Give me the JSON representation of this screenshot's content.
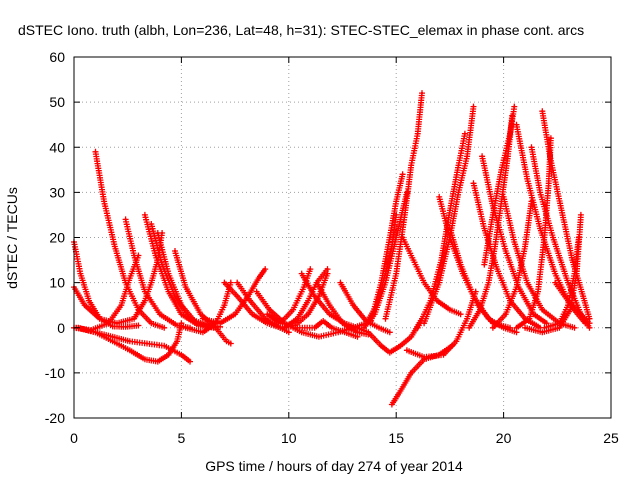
{
  "chart_data": {
    "type": "scatter",
    "title": "dSTEC Iono. truth (albh, Lon=236, Lat=48, h=31): STEC-STEC_elemax in phase cont. arcs",
    "xlabel": "GPS time / hours of day 274 of year 2014",
    "ylabel": "dSTEC  / TECUs",
    "xlim": [
      0,
      25
    ],
    "ylim": [
      -20,
      60
    ],
    "xticks": [
      0,
      5,
      10,
      15,
      20,
      25
    ],
    "yticks": [
      -20,
      -10,
      0,
      10,
      20,
      30,
      40,
      50,
      60
    ],
    "xtick_labels": [
      "0",
      "5",
      "10",
      "15",
      "20",
      "25"
    ],
    "ytick_labels": [
      "-20",
      "-10",
      "0",
      "10",
      "20",
      "30",
      "40",
      "50",
      "60"
    ],
    "grid": true,
    "marker": "+",
    "color": "#ff0000",
    "series": [
      {
        "points": [
          [
            0.0,
            19
          ],
          [
            0.3,
            12
          ],
          [
            0.7,
            6
          ],
          [
            1.2,
            2
          ],
          [
            1.8,
            0.3
          ],
          [
            2.4,
            0.2
          ],
          [
            3.0,
            0.5
          ]
        ]
      },
      {
        "points": [
          [
            0.0,
            9
          ],
          [
            0.5,
            5
          ],
          [
            1.2,
            2
          ],
          [
            2.0,
            1
          ],
          [
            2.8,
            2
          ],
          [
            3.3,
            6
          ],
          [
            3.6,
            10
          ],
          [
            3.9,
            15
          ],
          [
            4.1,
            21
          ]
        ]
      },
      {
        "points": [
          [
            0.0,
            0
          ],
          [
            0.8,
            -0.5
          ],
          [
            1.6,
            1
          ],
          [
            2.2,
            5
          ],
          [
            2.6,
            11
          ],
          [
            3.0,
            16
          ]
        ]
      },
      {
        "points": [
          [
            0.1,
            0
          ],
          [
            1.0,
            -1
          ],
          [
            1.8,
            -3
          ],
          [
            2.6,
            -5
          ],
          [
            3.3,
            -7
          ],
          [
            3.9,
            -7.5
          ],
          [
            4.4,
            -6
          ],
          [
            4.8,
            -3
          ],
          [
            5.0,
            1
          ]
        ]
      },
      {
        "points": [
          [
            0.2,
            0
          ],
          [
            1.0,
            -1
          ],
          [
            1.8,
            -2
          ],
          [
            2.6,
            -3
          ],
          [
            3.4,
            -3.5
          ],
          [
            4.2,
            -4
          ],
          [
            5.0,
            -6
          ],
          [
            5.4,
            -7.5
          ]
        ]
      },
      {
        "points": [
          [
            1.0,
            39
          ],
          [
            1.4,
            28
          ],
          [
            1.9,
            18
          ],
          [
            2.4,
            10
          ],
          [
            3.0,
            4
          ],
          [
            3.6,
            1
          ],
          [
            4.2,
            0
          ]
        ]
      },
      {
        "points": [
          [
            2.4,
            24
          ],
          [
            2.8,
            16
          ],
          [
            3.3,
            8
          ],
          [
            4.0,
            3
          ],
          [
            4.8,
            0.5
          ],
          [
            5.4,
            0
          ]
        ]
      },
      {
        "points": [
          [
            3.3,
            25
          ],
          [
            3.8,
            16
          ],
          [
            4.4,
            8
          ],
          [
            5.0,
            3
          ],
          [
            5.8,
            0.5
          ],
          [
            6.5,
            0
          ]
        ]
      },
      {
        "points": [
          [
            3.6,
            23
          ],
          [
            4.1,
            14
          ],
          [
            4.7,
            7
          ],
          [
            5.4,
            2
          ],
          [
            6.2,
            0.5
          ],
          [
            6.8,
            0.2
          ]
        ]
      },
      {
        "points": [
          [
            3.9,
            21
          ],
          [
            4.4,
            12
          ],
          [
            5.0,
            5
          ],
          [
            5.7,
            1
          ],
          [
            6.6,
            0
          ]
        ]
      },
      {
        "points": [
          [
            4.7,
            17
          ],
          [
            5.2,
            9
          ],
          [
            5.9,
            3
          ],
          [
            6.6,
            0
          ],
          [
            7.1,
            -3
          ],
          [
            7.3,
            -3.5
          ]
        ]
      },
      {
        "points": [
          [
            5.2,
            0
          ],
          [
            6.0,
            -1
          ],
          [
            6.6,
            1
          ],
          [
            7.0,
            5
          ],
          [
            7.3,
            10
          ]
        ]
      },
      {
        "points": [
          [
            6.0,
            2
          ],
          [
            6.8,
            1
          ],
          [
            7.5,
            3
          ],
          [
            8.1,
            7
          ],
          [
            8.6,
            11
          ],
          [
            8.9,
            13
          ]
        ]
      },
      {
        "points": [
          [
            7.0,
            10
          ],
          [
            7.6,
            7
          ],
          [
            8.3,
            3
          ],
          [
            9.0,
            1
          ],
          [
            9.6,
            0
          ],
          [
            10.0,
            -1
          ]
        ]
      },
      {
        "points": [
          [
            7.6,
            10
          ],
          [
            8.2,
            6
          ],
          [
            8.9,
            2
          ],
          [
            9.6,
            0
          ],
          [
            10.3,
            0.5
          ],
          [
            10.9,
            3
          ],
          [
            11.4,
            7
          ],
          [
            11.8,
            12
          ]
        ]
      },
      {
        "points": [
          [
            8.5,
            8
          ],
          [
            9.1,
            4
          ],
          [
            9.8,
            1
          ],
          [
            10.6,
            -1
          ],
          [
            11.4,
            -2
          ],
          [
            12.3,
            -1
          ],
          [
            13.0,
            0
          ]
        ]
      },
      {
        "points": [
          [
            9.0,
            3
          ],
          [
            9.6,
            1
          ],
          [
            10.2,
            4
          ],
          [
            10.7,
            9
          ],
          [
            11.0,
            13
          ]
        ]
      },
      {
        "points": [
          [
            9.8,
            0
          ],
          [
            10.4,
            2
          ],
          [
            10.9,
            6
          ],
          [
            11.3,
            10
          ],
          [
            11.8,
            13
          ]
        ]
      },
      {
        "points": [
          [
            10.4,
            0
          ],
          [
            11.2,
            0
          ],
          [
            11.6,
            1.5
          ],
          [
            12.0,
            0
          ],
          [
            12.6,
            -1
          ],
          [
            13.2,
            -2
          ]
        ]
      },
      {
        "points": [
          [
            10.6,
            12
          ],
          [
            11.2,
            7
          ],
          [
            11.9,
            3
          ],
          [
            12.6,
            1
          ],
          [
            13.2,
            0
          ]
        ]
      },
      {
        "points": [
          [
            11.3,
            10
          ],
          [
            11.9,
            5
          ],
          [
            12.5,
            1
          ],
          [
            13.2,
            -1
          ],
          [
            13.7,
            -1.5
          ]
        ]
      },
      {
        "points": [
          [
            12.4,
            10
          ],
          [
            13.0,
            5
          ],
          [
            13.6,
            1.5
          ],
          [
            14.2,
            0
          ],
          [
            14.7,
            -1
          ]
        ]
      },
      {
        "points": [
          [
            13.0,
            0
          ],
          [
            13.6,
            1
          ],
          [
            14.1,
            5
          ],
          [
            14.5,
            12
          ],
          [
            14.8,
            18
          ],
          [
            15.0,
            25
          ]
        ]
      },
      {
        "points": [
          [
            13.2,
            0
          ],
          [
            13.7,
            -1
          ],
          [
            14.3,
            -4
          ],
          [
            14.7,
            -5.5
          ],
          [
            15.2,
            -4
          ],
          [
            15.7,
            -2
          ],
          [
            16.2,
            2
          ]
        ]
      },
      {
        "points": [
          [
            13.5,
            0
          ],
          [
            14.0,
            3
          ],
          [
            14.5,
            10
          ],
          [
            14.9,
            18
          ],
          [
            15.2,
            24
          ],
          [
            15.5,
            30
          ]
        ]
      },
      {
        "points": [
          [
            13.8,
            1
          ],
          [
            14.3,
            10
          ],
          [
            14.7,
            20
          ],
          [
            15.0,
            28
          ],
          [
            15.3,
            34
          ]
        ]
      },
      {
        "points": [
          [
            14.5,
            2
          ],
          [
            15.0,
            12
          ],
          [
            15.4,
            25
          ],
          [
            15.7,
            36
          ],
          [
            16.0,
            43
          ],
          [
            16.2,
            52
          ]
        ]
      },
      {
        "points": [
          [
            14.8,
            -17
          ],
          [
            15.2,
            -14
          ],
          [
            15.7,
            -10
          ],
          [
            16.3,
            -7
          ],
          [
            17.0,
            -6
          ],
          [
            17.6,
            -4
          ]
        ]
      },
      {
        "points": [
          [
            15.3,
            20
          ],
          [
            15.8,
            15
          ],
          [
            16.3,
            10
          ],
          [
            16.9,
            6
          ],
          [
            17.5,
            4
          ],
          [
            18.0,
            3
          ]
        ]
      },
      {
        "points": [
          [
            15.5,
            -5
          ],
          [
            16.3,
            -6.5
          ],
          [
            17.2,
            -6
          ],
          [
            17.8,
            -3
          ],
          [
            18.3,
            2
          ],
          [
            18.7,
            8
          ]
        ]
      },
      {
        "points": [
          [
            16.0,
            0
          ],
          [
            16.6,
            6
          ],
          [
            17.1,
            15
          ],
          [
            17.5,
            26
          ],
          [
            17.9,
            36
          ],
          [
            18.2,
            43
          ]
        ]
      },
      {
        "points": [
          [
            16.3,
            1
          ],
          [
            17.0,
            10
          ],
          [
            17.5,
            20
          ],
          [
            17.9,
            30
          ],
          [
            18.3,
            38
          ],
          [
            18.6,
            49
          ]
        ]
      },
      {
        "points": [
          [
            17.0,
            29
          ],
          [
            17.5,
            20
          ],
          [
            18.1,
            12
          ],
          [
            18.8,
            5
          ],
          [
            19.5,
            1
          ],
          [
            20.3,
            0
          ]
        ]
      },
      {
        "points": [
          [
            17.5,
            22
          ],
          [
            18.0,
            14
          ],
          [
            18.6,
            7
          ],
          [
            19.3,
            2
          ],
          [
            20.0,
            0
          ],
          [
            20.6,
            -1
          ]
        ]
      },
      {
        "points": [
          [
            18.4,
            0
          ],
          [
            18.9,
            4
          ],
          [
            19.3,
            10
          ],
          [
            19.6,
            18
          ],
          [
            19.9,
            28
          ],
          [
            20.2,
            38
          ],
          [
            20.4,
            47
          ]
        ]
      },
      {
        "points": [
          [
            18.6,
            32
          ],
          [
            19.1,
            22
          ],
          [
            19.7,
            13
          ],
          [
            20.3,
            6
          ],
          [
            21.0,
            2
          ],
          [
            21.7,
            0
          ]
        ]
      },
      {
        "points": [
          [
            19.0,
            38
          ],
          [
            19.5,
            27
          ],
          [
            20.1,
            17
          ],
          [
            20.7,
            9
          ],
          [
            21.4,
            3
          ],
          [
            22.0,
            1
          ]
        ]
      },
      {
        "points": [
          [
            19.1,
            14
          ],
          [
            19.5,
            25
          ],
          [
            19.9,
            35
          ],
          [
            20.3,
            43
          ],
          [
            20.5,
            49
          ]
        ]
      },
      {
        "points": [
          [
            19.5,
            0
          ],
          [
            20.1,
            3
          ],
          [
            20.6,
            9
          ],
          [
            21.0,
            18
          ],
          [
            21.3,
            28
          ]
        ]
      },
      {
        "points": [
          [
            20.0,
            29
          ],
          [
            20.5,
            19
          ],
          [
            21.1,
            10
          ],
          [
            21.8,
            4
          ],
          [
            22.6,
            1
          ],
          [
            23.3,
            0
          ]
        ]
      },
      {
        "points": [
          [
            20.6,
            45
          ],
          [
            21.1,
            33
          ],
          [
            21.7,
            22
          ],
          [
            22.4,
            12
          ],
          [
            23.1,
            5
          ],
          [
            23.8,
            1
          ]
        ]
      },
      {
        "points": [
          [
            21.3,
            40
          ],
          [
            21.7,
            30
          ],
          [
            22.3,
            20
          ],
          [
            23.0,
            10
          ],
          [
            23.6,
            3
          ],
          [
            24.0,
            0
          ]
        ]
      },
      {
        "points": [
          [
            20.6,
            0
          ],
          [
            21.2,
            2
          ],
          [
            21.6,
            8
          ],
          [
            21.9,
            20
          ],
          [
            22.1,
            32
          ],
          [
            22.2,
            42
          ]
        ]
      },
      {
        "points": [
          [
            21.8,
            48
          ],
          [
            22.2,
            37
          ],
          [
            22.7,
            26
          ],
          [
            23.2,
            15
          ],
          [
            23.7,
            7
          ],
          [
            24.0,
            2
          ]
        ]
      },
      {
        "points": [
          [
            21.0,
            0
          ],
          [
            21.8,
            -1
          ],
          [
            22.6,
            0
          ],
          [
            23.1,
            4
          ],
          [
            23.4,
            12
          ],
          [
            23.6,
            25
          ]
        ]
      },
      {
        "points": [
          [
            21.9,
            0
          ],
          [
            22.6,
            1
          ],
          [
            23.0,
            5
          ],
          [
            23.3,
            12
          ],
          [
            23.5,
            20
          ]
        ]
      },
      {
        "points": [
          [
            22.4,
            10
          ],
          [
            23.0,
            6
          ],
          [
            23.6,
            3
          ],
          [
            24.0,
            1
          ]
        ]
      }
    ]
  }
}
